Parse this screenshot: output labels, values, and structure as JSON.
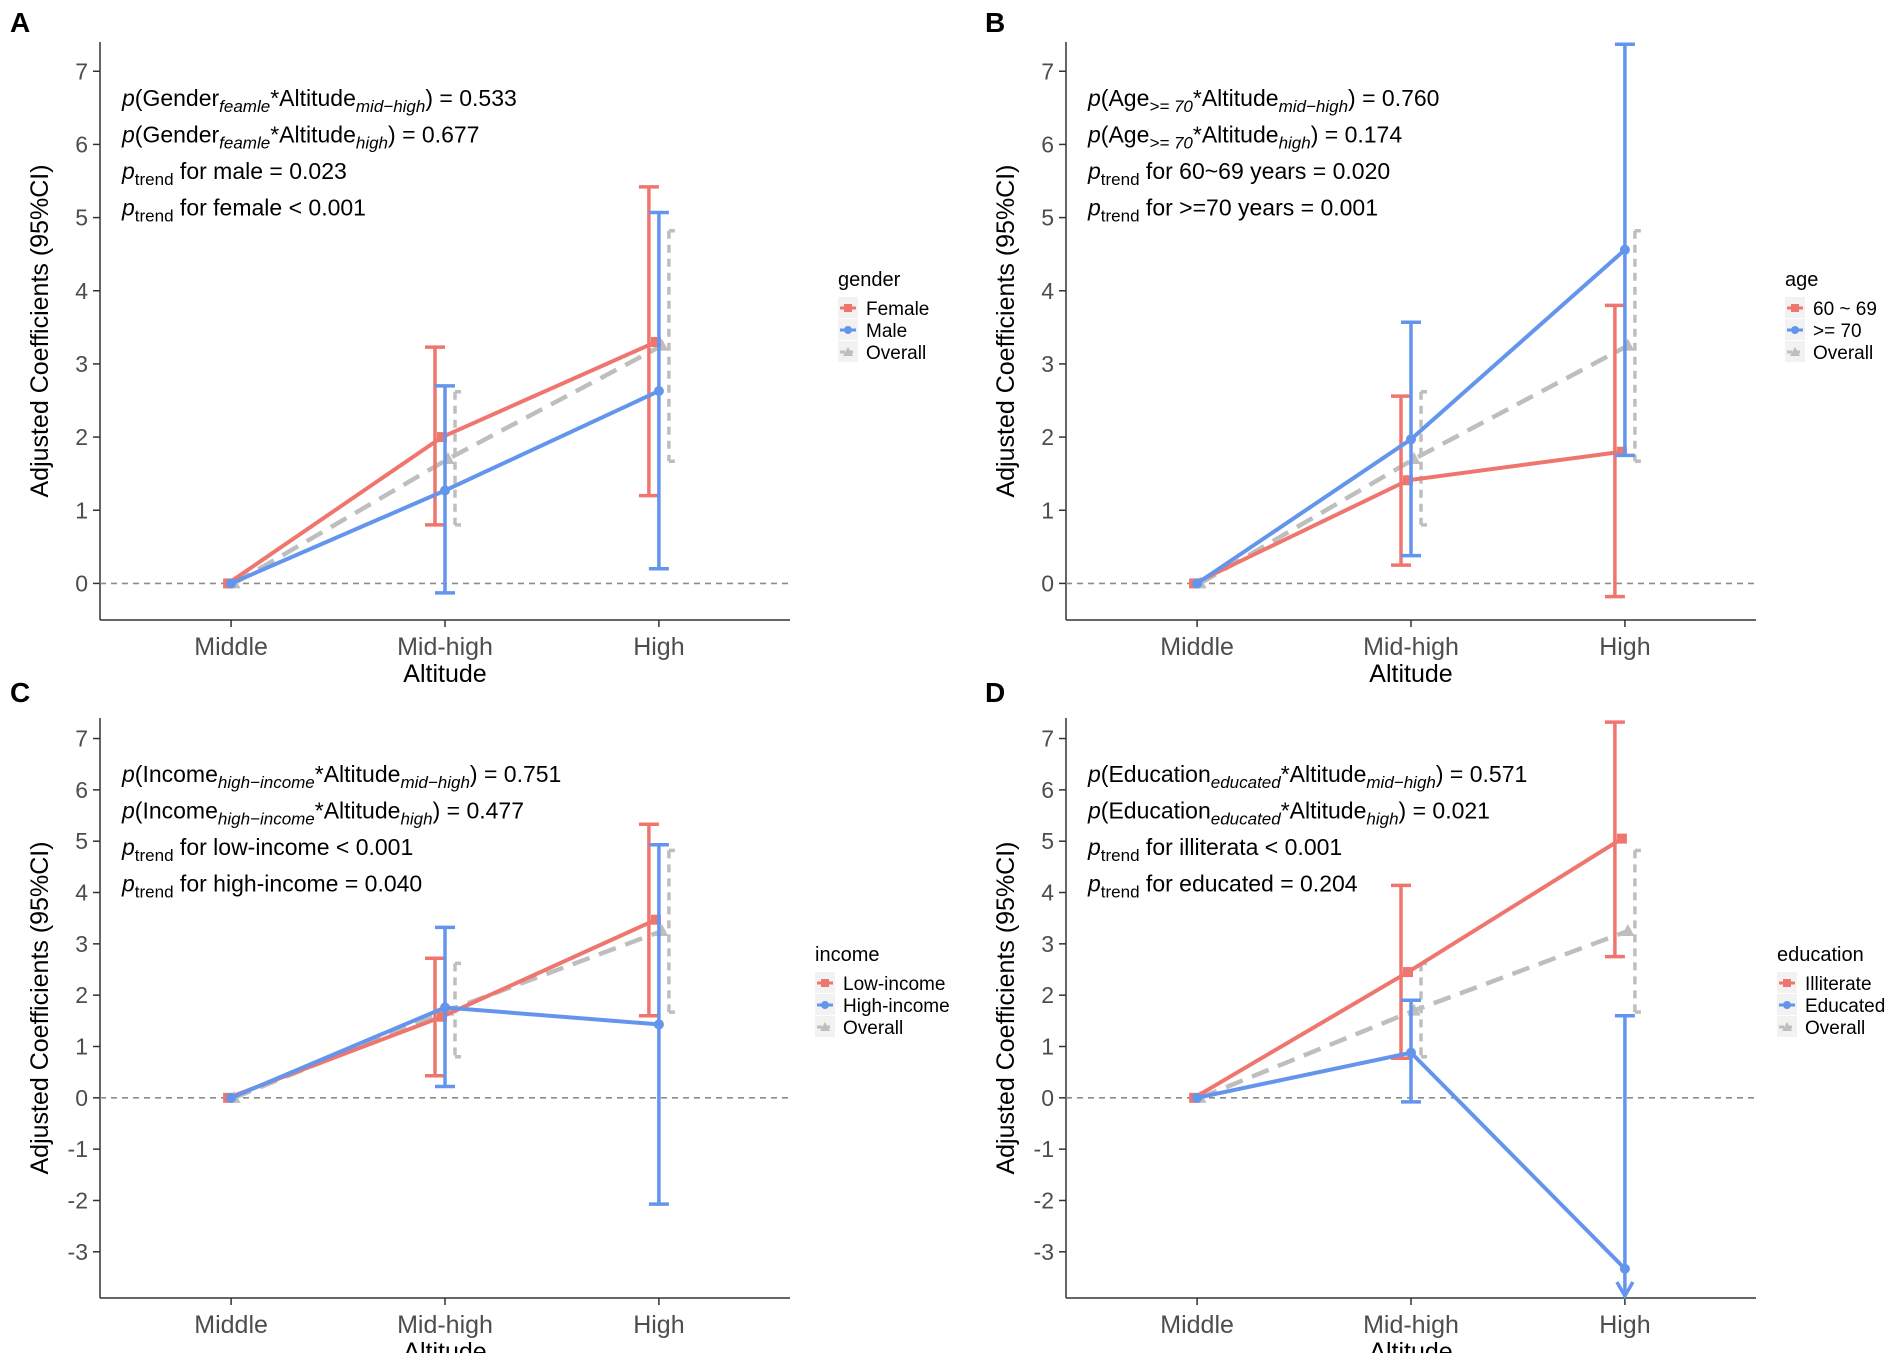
{
  "figure_note": "Four-panel interaction plot of adjusted coefficients by altitude",
  "colors": {
    "red": "#EF766E",
    "blue": "#6495ED",
    "gray": "#BEBEBE",
    "axis": "#333333",
    "tick": "#4D4D4D",
    "ref": "#8C8C8C",
    "legendKey": "#F2F2F2"
  },
  "chart_data": [
    {
      "panel": "A",
      "type": "line",
      "categories": [
        "Middle",
        "Mid-high",
        "High"
      ],
      "xlabel": "Altitude",
      "ylabel": "Adjusted Coefficients (95%CI)",
      "ylim": [
        -0.5,
        7.4
      ],
      "yticks": [
        0,
        1,
        2,
        3,
        4,
        5,
        6,
        7
      ],
      "legend_title": "gender",
      "reference_line": 0,
      "annotations": [
        [
          {
            "t": "p",
            "it": true
          },
          {
            "t": "(Gender"
          },
          {
            "t": "feamle",
            "sub": true,
            "it": true
          },
          {
            "t": "*Altitude"
          },
          {
            "t": "mid−high",
            "sub": true,
            "it": true
          },
          {
            "t": ") = 0.533"
          }
        ],
        [
          {
            "t": "p",
            "it": true
          },
          {
            "t": "(Gender"
          },
          {
            "t": "feamle",
            "sub": true,
            "it": true
          },
          {
            "t": "*Altitude"
          },
          {
            "t": "high",
            "sub": true,
            "it": true
          },
          {
            "t": ") = 0.677"
          }
        ],
        [
          {
            "t": "p",
            "it": true
          },
          {
            "t": "trend",
            "sub": true
          },
          {
            "t": " for male = 0.023"
          }
        ],
        [
          {
            "t": "p",
            "it": true
          },
          {
            "t": "trend",
            "sub": true
          },
          {
            "t": " for female < 0.001"
          }
        ]
      ],
      "series": [
        {
          "name": "Female",
          "color": "red",
          "marker": "square",
          "values": [
            0,
            2.0,
            3.3
          ],
          "lower": [
            null,
            0.8,
            1.2
          ],
          "upper": [
            null,
            3.23,
            5.42
          ]
        },
        {
          "name": "Male",
          "color": "blue",
          "marker": "circle",
          "values": [
            0,
            1.27,
            2.63
          ],
          "lower": [
            null,
            -0.13,
            0.2
          ],
          "upper": [
            null,
            2.7,
            5.07
          ]
        },
        {
          "name": "Overall",
          "color": "gray",
          "marker": "triangle",
          "dashed": true,
          "values": [
            0,
            1.7,
            3.25
          ],
          "lower": [
            null,
            0.8,
            1.67
          ],
          "upper": [
            null,
            2.62,
            4.82
          ]
        }
      ]
    },
    {
      "panel": "B",
      "type": "line",
      "categories": [
        "Middle",
        "Mid-high",
        "High"
      ],
      "xlabel": "Altitude",
      "ylabel": "Adjusted Coefficients (95%CI)",
      "ylim": [
        -0.5,
        7.4
      ],
      "yticks": [
        0,
        1,
        2,
        3,
        4,
        5,
        6,
        7
      ],
      "legend_title": "age",
      "reference_line": 0,
      "annotations": [
        [
          {
            "t": "p",
            "it": true
          },
          {
            "t": "(Age"
          },
          {
            "t": ">= 70",
            "sub": true,
            "it": true
          },
          {
            "t": "*Altitude"
          },
          {
            "t": "mid−high",
            "sub": true,
            "it": true
          },
          {
            "t": ") = 0.760"
          }
        ],
        [
          {
            "t": "p",
            "it": true
          },
          {
            "t": "(Age"
          },
          {
            "t": ">= 70",
            "sub": true,
            "it": true
          },
          {
            "t": "*Altitude"
          },
          {
            "t": "high",
            "sub": true,
            "it": true
          },
          {
            "t": ") = 0.174"
          }
        ],
        [
          {
            "t": "p",
            "it": true
          },
          {
            "t": "trend",
            "sub": true
          },
          {
            "t": " for 60~69 years = 0.020"
          }
        ],
        [
          {
            "t": "p",
            "it": true
          },
          {
            "t": "trend",
            "sub": true
          },
          {
            "t": " for >=70 years = 0.001"
          }
        ]
      ],
      "series": [
        {
          "name": "60 ~ 69",
          "color": "red",
          "marker": "square",
          "values": [
            0,
            1.41,
            1.8
          ],
          "lower": [
            null,
            0.25,
            -0.18
          ],
          "upper": [
            null,
            2.56,
            3.8
          ]
        },
        {
          "name": ">= 70",
          "color": "blue",
          "marker": "circle",
          "values": [
            0,
            1.97,
            4.56
          ],
          "lower": [
            null,
            0.38,
            1.75
          ],
          "upper": [
            null,
            3.57,
            7.37
          ]
        },
        {
          "name": "Overall",
          "color": "gray",
          "marker": "triangle",
          "dashed": true,
          "values": [
            0,
            1.7,
            3.25
          ],
          "lower": [
            null,
            0.8,
            1.67
          ],
          "upper": [
            null,
            2.62,
            4.82
          ]
        }
      ]
    },
    {
      "panel": "C",
      "type": "line",
      "categories": [
        "Middle",
        "Mid-high",
        "High"
      ],
      "xlabel": "Altitude",
      "ylabel": "Adjusted Coefficients (95%CI)",
      "ylim": [
        -3.9,
        7.4
      ],
      "yticks": [
        -3,
        -2,
        -1,
        0,
        1,
        2,
        3,
        4,
        5,
        6,
        7
      ],
      "legend_title": "income",
      "reference_line": 0,
      "annotations": [
        [
          {
            "t": "p",
            "it": true
          },
          {
            "t": "(Income"
          },
          {
            "t": "high−income",
            "sub": true,
            "it": true
          },
          {
            "t": "*Altitude"
          },
          {
            "t": "mid−high",
            "sub": true,
            "it": true
          },
          {
            "t": ") = 0.751"
          }
        ],
        [
          {
            "t": "p",
            "it": true
          },
          {
            "t": "(Income"
          },
          {
            "t": "high−income",
            "sub": true,
            "it": true
          },
          {
            "t": "*Altitude"
          },
          {
            "t": "high",
            "sub": true,
            "it": true
          },
          {
            "t": ") = 0.477"
          }
        ],
        [
          {
            "t": "p",
            "it": true
          },
          {
            "t": "trend",
            "sub": true
          },
          {
            "t": " for low-income < 0.001"
          }
        ],
        [
          {
            "t": "p",
            "it": true
          },
          {
            "t": "trend",
            "sub": true
          },
          {
            "t": " for high-income = 0.040"
          }
        ]
      ],
      "series": [
        {
          "name": "Low-income",
          "color": "red",
          "marker": "square",
          "values": [
            0,
            1.58,
            3.47
          ],
          "lower": [
            null,
            0.43,
            1.6
          ],
          "upper": [
            null,
            2.72,
            5.33
          ]
        },
        {
          "name": "High-income",
          "color": "blue",
          "marker": "circle",
          "values": [
            0,
            1.76,
            1.43
          ],
          "lower": [
            null,
            0.22,
            -2.07
          ],
          "upper": [
            null,
            3.32,
            4.93
          ]
        },
        {
          "name": "Overall",
          "color": "gray",
          "marker": "triangle",
          "dashed": true,
          "values": [
            0,
            1.7,
            3.25
          ],
          "lower": [
            null,
            0.8,
            1.67
          ],
          "upper": [
            null,
            2.62,
            4.82
          ]
        }
      ]
    },
    {
      "panel": "D",
      "type": "line",
      "categories": [
        "Middle",
        "Mid-high",
        "High"
      ],
      "xlabel": "Altitude",
      "ylabel": "Adjusted Coefficients (95%CI)",
      "ylim": [
        -3.9,
        7.4
      ],
      "yticks": [
        -3,
        -2,
        -1,
        0,
        1,
        2,
        3,
        4,
        5,
        6,
        7
      ],
      "legend_title": "education",
      "reference_line": 0,
      "annotations": [
        [
          {
            "t": "p",
            "it": true
          },
          {
            "t": "(Education"
          },
          {
            "t": "educated",
            "sub": true,
            "it": true
          },
          {
            "t": "*Altitude"
          },
          {
            "t": "mid−high",
            "sub": true,
            "it": true
          },
          {
            "t": ") = 0.571"
          }
        ],
        [
          {
            "t": "p",
            "it": true
          },
          {
            "t": "(Education"
          },
          {
            "t": "educated",
            "sub": true,
            "it": true
          },
          {
            "t": "*Altitude"
          },
          {
            "t": "high",
            "sub": true,
            "it": true
          },
          {
            "t": ") = 0.021"
          }
        ],
        [
          {
            "t": "p",
            "it": true
          },
          {
            "t": "trend",
            "sub": true
          },
          {
            "t": " for illiterata < 0.001"
          }
        ],
        [
          {
            "t": "p",
            "it": true
          },
          {
            "t": "trend",
            "sub": true
          },
          {
            "t": " for educated = 0.204"
          }
        ]
      ],
      "series": [
        {
          "name": "Illiterate",
          "color": "red",
          "marker": "square",
          "values": [
            0,
            2.45,
            5.05
          ],
          "lower": [
            null,
            0.77,
            2.75
          ],
          "upper": [
            null,
            4.14,
            7.32
          ]
        },
        {
          "name": "Educated",
          "color": "blue",
          "marker": "circle",
          "values": [
            0,
            0.88,
            -3.33
          ],
          "lower": [
            null,
            -0.08,
            null
          ],
          "upper": [
            null,
            1.9,
            1.6
          ],
          "lower_truncated": [
            false,
            false,
            true
          ]
        },
        {
          "name": "Overall",
          "color": "gray",
          "marker": "triangle",
          "dashed": true,
          "values": [
            0,
            1.7,
            3.25
          ],
          "lower": [
            null,
            0.8,
            1.67
          ],
          "upper": [
            null,
            2.62,
            4.82
          ]
        }
      ]
    }
  ]
}
